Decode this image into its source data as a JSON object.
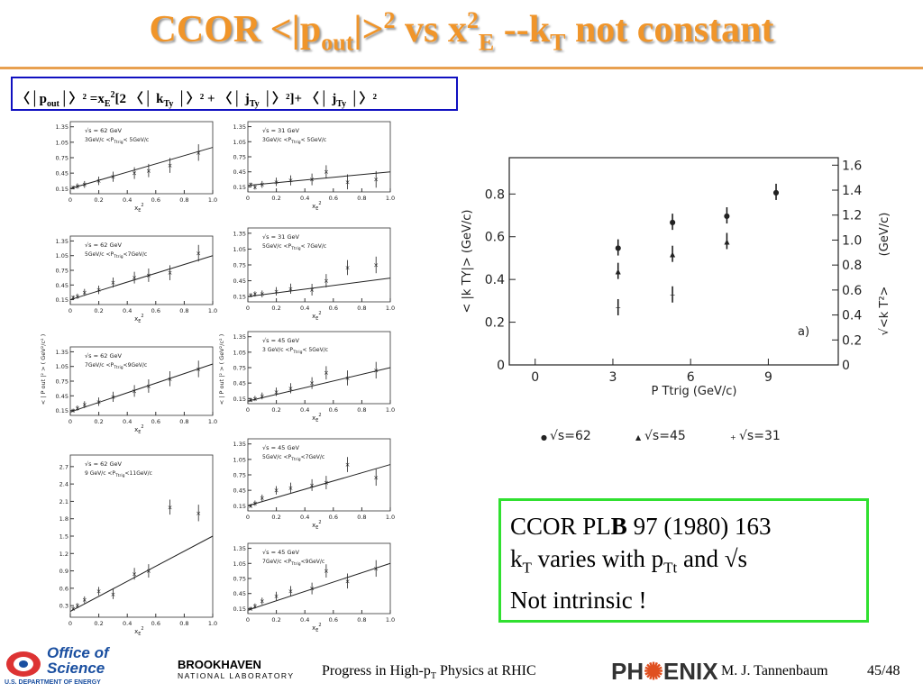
{
  "title": {
    "a": "CCOR <|p",
    "b": "out",
    "c": "|>",
    "d": "2",
    "e": " vs x",
    "f": "2",
    "g": "E",
    "h": " --k",
    "i": "T",
    "j": " not constant"
  },
  "formula": {
    "a": "〈│",
    "b": "p",
    "c": "out",
    "d": "│〉² =x",
    "e": "E",
    "f": "2",
    "g": "[2 〈│ ",
    "h": "k",
    "i": "Ty",
    "j": " │〉² + 〈│ ",
    "k": "j",
    "l": "Ty",
    "m": " │〉²]+ 〈│ ",
    "n": "j",
    "o": "Ty",
    "p": " │〉²"
  },
  "panels_common": {
    "ylabel": "< | P out |² > ( GeV²/c² )",
    "xlabel": {
      "a": "x",
      "b": "E",
      "c": "2"
    },
    "xticks": [
      0,
      0.2,
      0.4,
      0.6,
      0.8,
      {
        "value": 1,
        "label": "1.0"
      }
    ],
    "x": [
      0.02,
      0.05,
      0.1,
      0.2,
      0.3,
      0.45,
      0.55,
      0.7,
      0.9
    ]
  },
  "panels": [
    {
      "energy": "√s = 62 GeV",
      "range": {
        "pre": "3GeV/c <P",
        "sub": "Ttrig",
        "post": "< 5GeV/c"
      },
      "ylim": [
        0.05,
        1.45
      ],
      "yticks": [
        0.15,
        0.45,
        0.75,
        1.05,
        1.35
      ],
      "values": [
        0.17,
        0.2,
        0.23,
        0.3,
        0.38,
        0.45,
        0.5,
        0.6,
        0.85
      ],
      "fit": [
        0.15,
        0.95
      ]
    },
    {
      "energy": "√s = 62 GeV",
      "range": {
        "pre": "5GeV/c <P",
        "sub": "Ttrig",
        "post": "<7GeV/c"
      },
      "ylim": [
        0.05,
        1.45
      ],
      "yticks": [
        0.15,
        0.45,
        0.75,
        1.05,
        1.35
      ],
      "values": [
        0.2,
        0.22,
        0.3,
        0.35,
        0.5,
        0.6,
        0.65,
        0.7,
        1.1
      ],
      "fit": [
        0.15,
        1.05
      ]
    },
    {
      "energy": "√s = 62 GeV",
      "range": {
        "pre": "7GeV/c <P",
        "sub": "Ttrig",
        "post": "<9GeV/c"
      },
      "ylim": [
        0.05,
        1.45
      ],
      "yticks": [
        0.15,
        0.45,
        0.75,
        1.05,
        1.35
      ],
      "values": [
        0.15,
        0.2,
        0.27,
        0.33,
        0.43,
        0.55,
        0.65,
        0.8,
        1.0
      ],
      "fit": [
        0.12,
        1.1
      ]
    },
    {
      "energy": "√s = 62  GeV",
      "range": {
        "pre": "9 GeV/c <P",
        "sub": "Ttrig",
        "post": "<11GeV/c"
      },
      "ylim": [
        0.1,
        2.9
      ],
      "yticks": [
        0.3,
        0.6,
        0.9,
        1.2,
        1.5,
        1.8,
        2.1,
        2.4,
        2.7
      ],
      "values": [
        0.25,
        0.3,
        0.4,
        0.55,
        0.5,
        0.85,
        0.9,
        2.0,
        1.9
      ],
      "fit": [
        0.2,
        1.5
      ]
    },
    {
      "energy": "√s = 31 GeV",
      "range": {
        "pre": "3GeV/c <P",
        "sub": "Ttrig",
        "post": "< 5GeV/c"
      },
      "ylim": [
        0.05,
        1.45
      ],
      "yticks": [
        0.15,
        0.45,
        0.75,
        1.05,
        1.35
      ],
      "values": [
        0.2,
        0.15,
        0.2,
        0.25,
        0.28,
        0.3,
        0.45,
        0.25,
        0.3
      ],
      "fit": [
        0.18,
        0.45
      ]
    },
    {
      "energy": "√s = 31 GeV",
      "range": {
        "pre": "5GeV/c <P",
        "sub": "Ttrig",
        "post": "< 7GeV/c"
      },
      "ylim": [
        0.05,
        1.45
      ],
      "yticks": [
        0.15,
        0.45,
        0.75,
        1.05,
        1.35
      ],
      "values": [
        0.18,
        0.2,
        0.2,
        0.25,
        0.3,
        0.28,
        0.45,
        0.7,
        0.75
      ],
      "fit": [
        0.15,
        0.5
      ]
    },
    {
      "energy": "√s = 45 GeV",
      "range": {
        "pre": "3 GeV/c <P",
        "sub": "Ttrig",
        "post": "< 5GeV/c"
      },
      "ylim": [
        0.05,
        1.45
      ],
      "yticks": [
        0.15,
        0.45,
        0.75,
        1.05,
        1.35
      ],
      "values": [
        0.12,
        0.15,
        0.2,
        0.28,
        0.35,
        0.45,
        0.65,
        0.55,
        0.7
      ],
      "fit": [
        0.1,
        0.75
      ]
    },
    {
      "energy": "√s = 45 GeV",
      "range": {
        "pre": "5GeV/c <P",
        "sub": "Ttrig",
        "post": "<7GeV/c"
      },
      "ylim": [
        0.05,
        1.45
      ],
      "yticks": [
        0.15,
        0.45,
        0.75,
        1.05,
        1.35
      ],
      "values": [
        0.15,
        0.2,
        0.3,
        0.45,
        0.5,
        0.55,
        0.6,
        0.95,
        0.7
      ],
      "fit": [
        0.15,
        0.95
      ]
    },
    {
      "energy": "√s = 45 GeV",
      "range": {
        "pre": "7GeV/c <P",
        "sub": "Ttrig",
        "post": "<9GeV/c"
      },
      "ylim": [
        0.05,
        1.45
      ],
      "yticks": [
        0.15,
        0.45,
        0.75,
        1.05,
        1.35
      ],
      "values": [
        0.15,
        0.2,
        0.3,
        0.4,
        0.5,
        0.55,
        0.9,
        0.7,
        0.95
      ],
      "fit": [
        0.12,
        1.05
      ]
    }
  ],
  "kt_plot": {
    "ylabel": "< |k TY|> (GeV/c)",
    "y2label": "(GeV/c)",
    "y2name": "√<k T²>",
    "xlabel": "P Ttrig (GeV/c)",
    "tag": "a)",
    "xlim": [
      -1,
      11.7
    ],
    "xticks": [
      0,
      3,
      6,
      9
    ],
    "ylim": [
      0,
      0.97
    ],
    "yticks": [
      0,
      0.2,
      0.4,
      0.6,
      0.8
    ],
    "y2lim": [
      0,
      1.66
    ],
    "y2ticks": [
      0,
      0.2,
      0.4,
      0.6,
      0.8,
      {
        "value": 1,
        "label": "1.0"
      },
      1.2,
      1.4,
      1.6
    ],
    "series": [
      {
        "name": "√s=62",
        "marker": "dot",
        "x": [
          3.2,
          5.3,
          7.4,
          9.3
        ],
        "values": [
          0.55,
          0.67,
          0.7,
          0.81
        ]
      },
      {
        "name": "√s=45",
        "marker": "tri",
        "x": [
          3.2,
          5.3,
          7.4
        ],
        "values": [
          0.44,
          0.52,
          0.58
        ]
      },
      {
        "name": "√s=31",
        "marker": "plus",
        "x": [
          3.2,
          5.3
        ],
        "values": [
          0.27,
          0.33
        ]
      }
    ]
  },
  "note": {
    "l1a": "CCOR PL",
    "l1b": "B",
    "l1c": " 97 (1980) 163",
    "l2a": "k",
    "l2b": "T",
    "l2c": " varies with p",
    "l2d": "Tt",
    "l2e": " and √s",
    "l3": "Not intrinsic !"
  },
  "footer": {
    "office1": "Office of",
    "office2": "Science",
    "doe": "U.S. DEPARTMENT OF ENERGY",
    "bnl1": "BROOKHAVEN",
    "bnl2": "NATIONAL LABORATORY",
    "talk_a": "Progress in High-p",
    "talk_b": "T",
    "talk_c": " Physics at RHIC",
    "phenix_a": "PH",
    "phenix_b": "ENIX",
    "author": "M. J. Tannenbaum",
    "page": "45/48"
  }
}
